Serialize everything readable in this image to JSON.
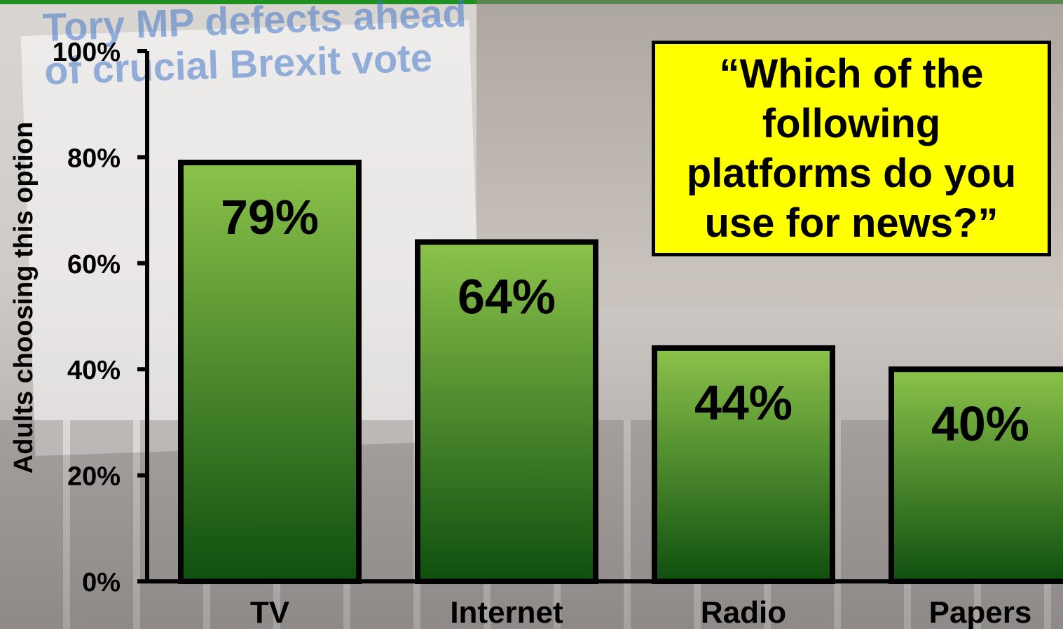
{
  "background": {
    "headline": "Tory MP defects ahead\nof crucial Brexit vote"
  },
  "question": "“Which of the following platforms do you use for news?”",
  "colors": {
    "bar_top": "#8bc34a",
    "bar_bottom": "#0f4f0f",
    "axis": "#000000",
    "box": "#ffff00",
    "strip": "#1f8f1f"
  },
  "chart_data": {
    "type": "bar",
    "categories": [
      "TV",
      "Internet",
      "Radio",
      "Papers"
    ],
    "values": [
      79,
      64,
      44,
      40
    ],
    "data_labels": [
      "79%",
      "64%",
      "44%",
      "40%"
    ],
    "ylabel": "Adults choosing this option",
    "xlabel": "",
    "ylim": [
      0,
      100
    ],
    "yticks": [
      0,
      20,
      40,
      60,
      80,
      100
    ],
    "ytick_labels": [
      "0%",
      "20%",
      "40%",
      "60%",
      "80%",
      "100%"
    ],
    "grid": false,
    "legend": "none"
  }
}
